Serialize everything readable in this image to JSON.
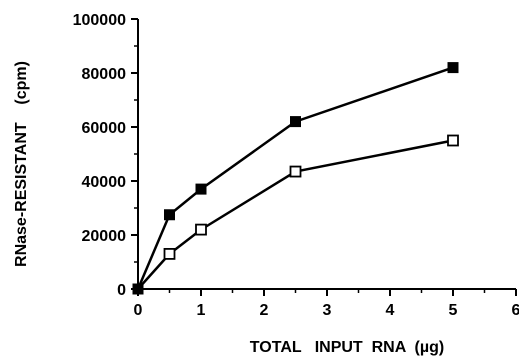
{
  "chart_data": {
    "type": "line",
    "title": "",
    "xlabel": "TOTAL   INPUT  RNA  (µg)",
    "ylabel": "RNase-RESISTANT    (cpm)",
    "xlim": [
      0,
      6
    ],
    "ylim": [
      0,
      100000
    ],
    "x_ticks": [
      "0",
      "1",
      "2",
      "3",
      "4",
      "5",
      "6"
    ],
    "y_ticks": [
      "0",
      "20000",
      "40000",
      "60000",
      "80000",
      "100000"
    ],
    "grid": false,
    "legend": "none",
    "series": [
      {
        "marker": "filled-square",
        "x": [
          0,
          0.5,
          1,
          2.5,
          5
        ],
        "y": [
          0,
          27500,
          37000,
          62000,
          82000
        ]
      },
      {
        "marker": "open-square",
        "x": [
          0,
          0.5,
          1,
          2.5,
          5
        ],
        "y": [
          0,
          13000,
          22000,
          43500,
          55000
        ]
      }
    ]
  }
}
